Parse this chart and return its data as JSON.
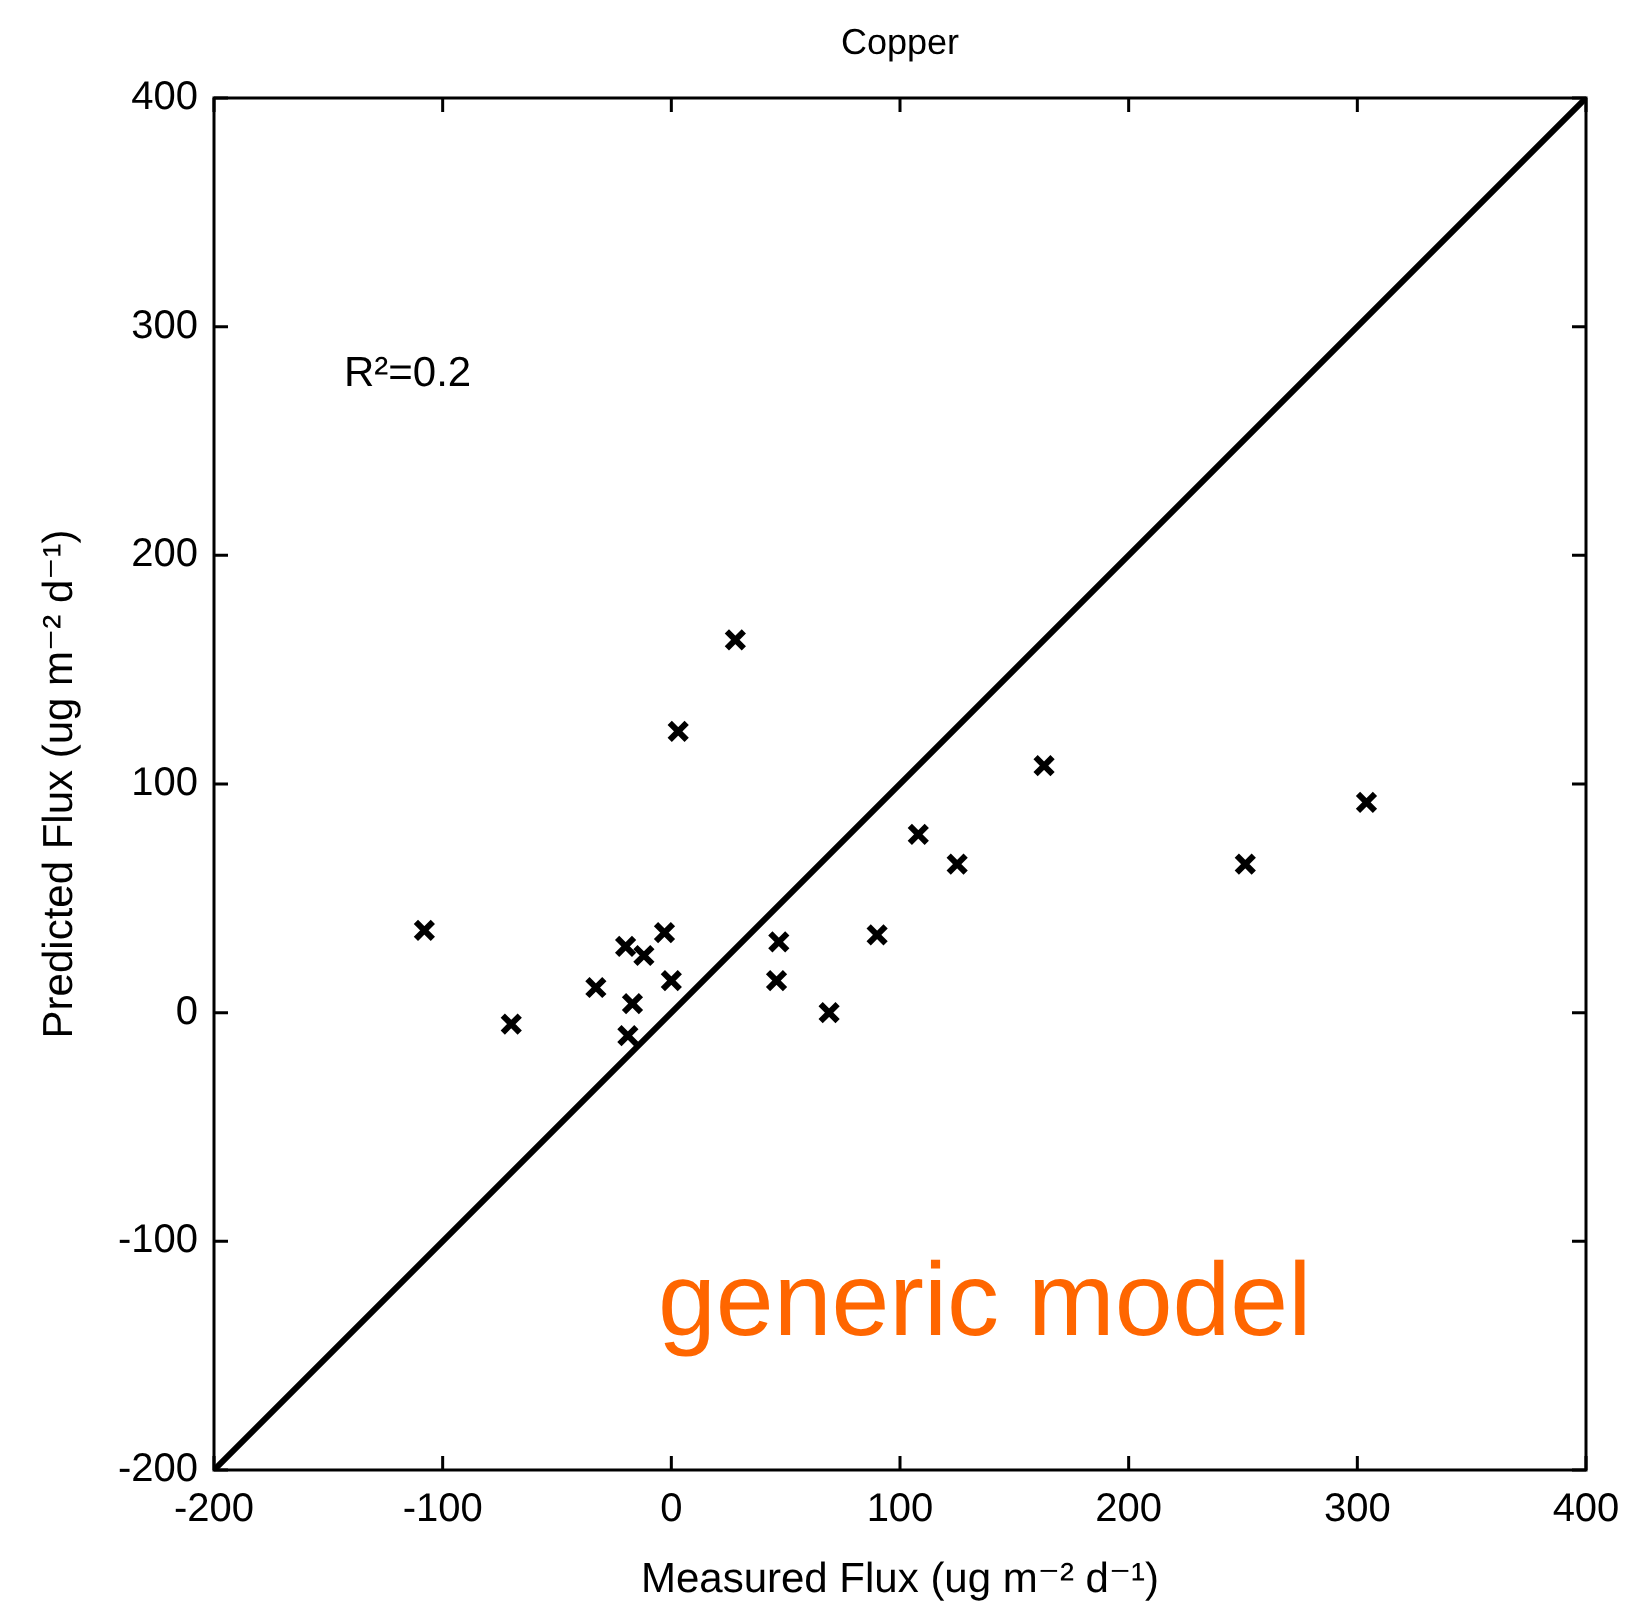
{
  "chart_data": {
    "type": "scatter",
    "title": "Copper",
    "xlabel": "Measured Flux (ug m⁻² d⁻¹)",
    "ylabel": "Predicted Flux (ug m⁻² d⁻¹)",
    "annotations": [
      "R²=0.2",
      "generic model"
    ],
    "xlim": [
      -200,
      400
    ],
    "ylim": [
      -200,
      400
    ],
    "xticks": [
      -200,
      -100,
      0,
      100,
      200,
      300,
      400
    ],
    "yticks": [
      -200,
      -100,
      0,
      100,
      200,
      300,
      400
    ],
    "grid": false,
    "marker": "cross",
    "series": [
      {
        "color": "#000000",
        "x": [
          -108,
          -70,
          -33,
          -17,
          -19,
          -20,
          -12,
          -3,
          0,
          3,
          28,
          47,
          46,
          69,
          90,
          108,
          125,
          163,
          251,
          304
        ],
        "values": [
          36,
          -5,
          11,
          4,
          -10,
          29,
          25,
          35,
          14,
          123,
          163,
          31,
          14,
          0,
          34,
          78,
          65,
          108,
          65,
          92
        ]
      },
      {
        "type": "line",
        "color": "#000000",
        "marker": "none",
        "x": [
          -200,
          400
        ],
        "values": [
          -200,
          400
        ]
      }
    ]
  }
}
